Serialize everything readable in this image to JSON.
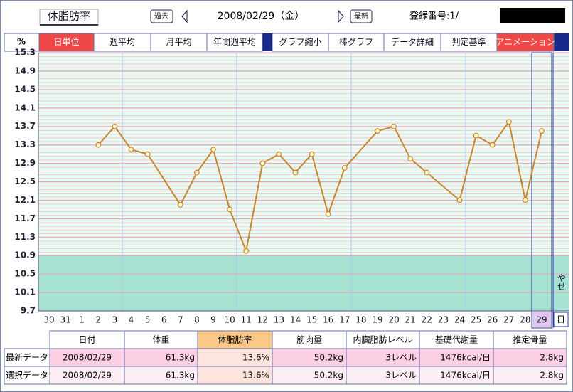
{
  "header": {
    "title": "体脂肪率",
    "prev": "過去",
    "date": "2008/02/29（金）",
    "latest": "最新",
    "id_label": "登録番号:1/"
  },
  "tabs": [
    "日単位",
    "週平均",
    "月平均",
    "年間週平均",
    "グラフ縮小",
    "棒グラフ",
    "データ詳細",
    "判定基準",
    "アニメーション"
  ],
  "active_tabs": [
    "日単位",
    "アニメーション"
  ],
  "chart_data": {
    "type": "line",
    "ylabel": "%",
    "xlabel": "日",
    "categories": [
      "30",
      "31",
      "1",
      "2",
      "3",
      "4",
      "5",
      "6",
      "7",
      "8",
      "9",
      "10",
      "11",
      "12",
      "13",
      "14",
      "15",
      "16",
      "17",
      "18",
      "19",
      "20",
      "21",
      "22",
      "23",
      "24",
      "25",
      "26",
      "27",
      "28",
      "29"
    ],
    "series": [
      {
        "name": "体脂肪率",
        "color": "#c8862a",
        "values": [
          null,
          null,
          null,
          13.3,
          13.7,
          13.2,
          13.1,
          null,
          12.0,
          12.7,
          13.2,
          11.9,
          11.0,
          12.9,
          13.1,
          12.7,
          13.1,
          11.8,
          12.8,
          null,
          13.6,
          13.7,
          13.0,
          12.7,
          null,
          12.1,
          13.5,
          13.3,
          13.8,
          12.1,
          13.6
        ]
      }
    ],
    "ylim": [
      9.7,
      15.3
    ],
    "yticks": [
      15.3,
      14.9,
      14.5,
      14.1,
      13.7,
      13.3,
      12.9,
      12.5,
      12.1,
      11.7,
      11.3,
      10.9,
      10.5,
      10.1,
      9.7
    ],
    "zone": {
      "label": "やせ",
      "below": 10.9
    },
    "selected_category": "29"
  },
  "table": {
    "header": [
      "日付",
      "体重",
      "体脂肪率",
      "筋肉量",
      "内臓脂肪レベル",
      "基礎代謝量",
      "推定骨量"
    ],
    "rows": [
      [
        "最新データ",
        "2008/02/29",
        "61.3kg",
        "13.6%",
        "50.2kg",
        "3レベル",
        "1476kcal/日",
        "2.8kg"
      ],
      [
        "選択データ",
        "2008/02/29",
        "61.3kg",
        "13.6%",
        "50.2kg",
        "3レベル",
        "1476kcal/日",
        "2.8kg"
      ]
    ]
  }
}
